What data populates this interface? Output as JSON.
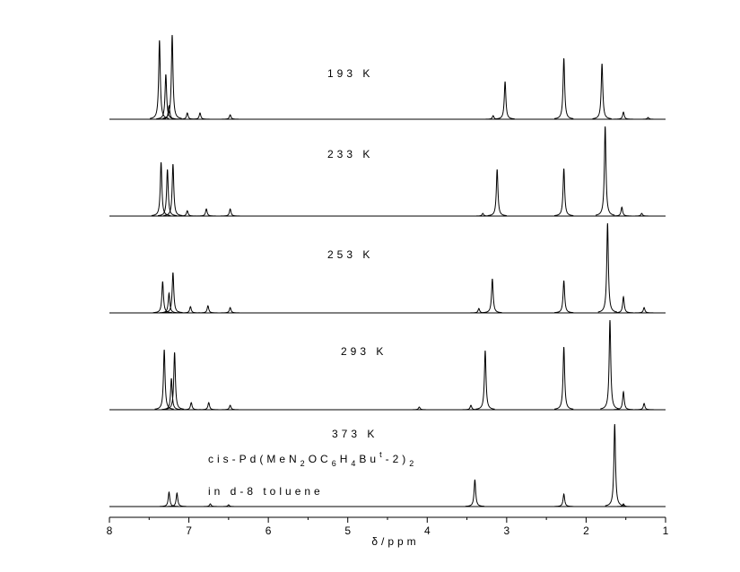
{
  "chart_data": {
    "type": "nmr-stack",
    "xlabel": "δ/ppm",
    "xlim": [
      8,
      1
    ],
    "xticks": [
      8,
      7,
      6,
      5,
      4,
      3,
      2,
      1
    ],
    "linewidth": 0.012,
    "color": "#000000",
    "series": [
      {
        "name": "193 K",
        "x": [
          7.37,
          7.29,
          7.25,
          7.21,
          7.02,
          6.86,
          6.48,
          3.17,
          3.02,
          2.28,
          1.8,
          1.53,
          1.22
        ],
        "values": [
          88,
          50,
          15,
          94,
          7,
          7,
          5,
          4,
          42,
          68,
          62,
          8,
          2
        ]
      },
      {
        "name": "233 K",
        "x": [
          7.35,
          7.27,
          7.2,
          7.02,
          6.78,
          6.48,
          3.3,
          3.12,
          2.28,
          1.76,
          1.55,
          1.3
        ],
        "values": [
          60,
          52,
          58,
          6,
          8,
          8,
          3,
          52,
          53,
          100,
          10,
          3
        ]
      },
      {
        "name": "253 K",
        "x": [
          7.33,
          7.25,
          7.2,
          6.98,
          6.76,
          6.48,
          3.35,
          3.18,
          2.28,
          1.73,
          1.53,
          1.27
        ],
        "values": [
          35,
          22,
          45,
          7,
          8,
          6,
          5,
          38,
          36,
          100,
          18,
          6
        ]
      },
      {
        "name": "293 K",
        "x": [
          7.31,
          7.22,
          7.18,
          6.97,
          6.75,
          6.48,
          4.1,
          3.45,
          3.27,
          2.28,
          1.7,
          1.53,
          1.27
        ],
        "values": [
          67,
          35,
          64,
          8,
          8,
          5,
          3,
          5,
          66,
          70,
          100,
          20,
          7
        ]
      },
      {
        "name": "373 K",
        "x": [
          7.25,
          7.15,
          6.73,
          6.5,
          3.4,
          2.28,
          1.64,
          1.53
        ],
        "values": [
          16,
          15,
          3,
          2,
          30,
          14,
          92,
          3
        ]
      }
    ],
    "annotation": [
      {
        "text": "cis-Pd(MeN"
      },
      {
        "text": "2",
        "sub": true
      },
      {
        "text": "OC"
      },
      {
        "text": "6",
        "sub": true
      },
      {
        "text": "H"
      },
      {
        "text": "4",
        "sub": true
      },
      {
        "text": "Bu"
      },
      {
        "text": "t",
        "sup": true
      },
      {
        "text": "-2)"
      },
      {
        "text": "2",
        "sub": true
      }
    ],
    "solvent": "in d-8 toluene"
  }
}
